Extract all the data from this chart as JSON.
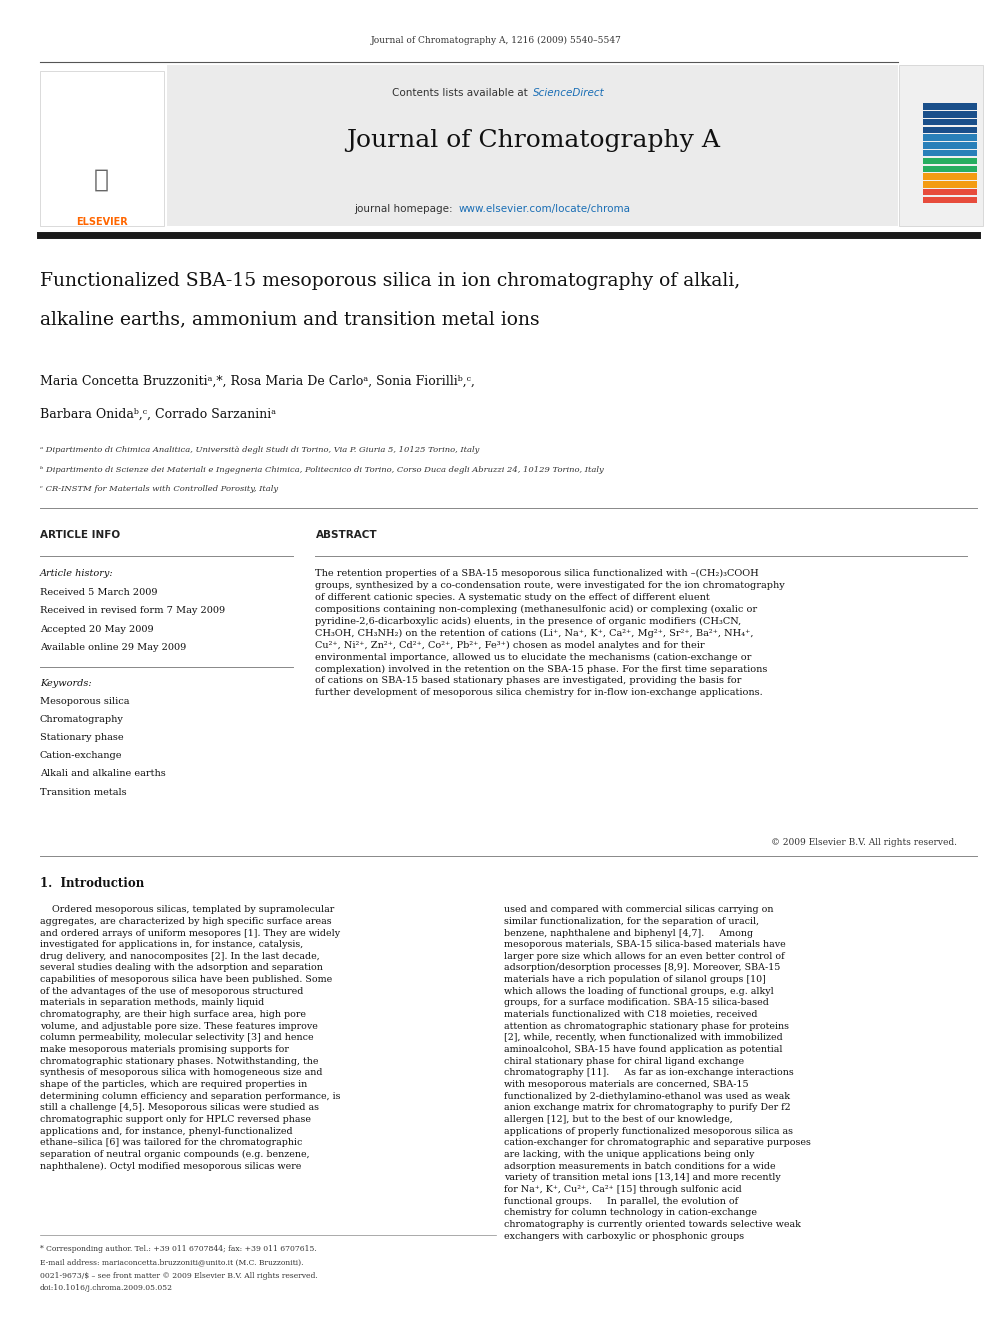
{
  "page_width": 9.92,
  "page_height": 13.23,
  "bg_color": "#ffffff",
  "journal_ref": "Journal of Chromatography A, 1216 (2009) 5540–5547",
  "header_bg": "#e8e8e8",
  "contents_text": "Contents lists available at",
  "sciencedirect_text": "ScienceDirect",
  "sciencedirect_color": "#1a6eb5",
  "journal_title": "Journal of Chromatography A",
  "journal_homepage_label": "journal homepage:",
  "journal_homepage_url": "www.elsevier.com/locate/chroma",
  "journal_homepage_color": "#1a6eb5",
  "article_title_line1": "Functionalized SBA-15 mesoporous silica in ion chromatography of alkali,",
  "article_title_line2": "alkaline earths, ammonium and transition metal ions",
  "authors": "Maria Concetta Bruzzonitiᵃ,*, Rosa Maria De Carloᵃ, Sonia Fiorilliᵇ,ᶜ,",
  "authors_line2": "Barbara Onidaᵇ,ᶜ, Corrado Sarzaniniᵃ",
  "affil_a": "ᵃ Dipartimento di Chimica Analitica, Università degli Studi di Torino, Via P. Giuria 5, 10125 Torino, Italy",
  "affil_b": "ᵇ Dipartimento di Scienze dei Materiali e Ingegneria Chimica, Politecnico di Torino, Corso Duca degli Abruzzi 24, 10129 Torino, Italy",
  "affil_c": "ᶜ CR-INSTM for Materials with Controlled Porosity, Italy",
  "article_info_title": "ARTICLE INFO",
  "abstract_title": "ABSTRACT",
  "article_history_label": "Article history:",
  "received": "Received 5 March 2009",
  "revised": "Received in revised form 7 May 2009",
  "accepted": "Accepted 20 May 2009",
  "available": "Available online 29 May 2009",
  "keywords_label": "Keywords:",
  "keyword1": "Mesoporous silica",
  "keyword2": "Chromatography",
  "keyword3": "Stationary phase",
  "keyword4": "Cation-exchange",
  "keyword5": "Alkali and alkaline earths",
  "keyword6": "Transition metals",
  "abstract_text": "The retention properties of a SBA-15 mesoporous silica functionalized with –(CH₂)₃COOH groups, synthesized by a co-condensation route, were investigated for the ion chromatography of different cationic species. A systematic study on the effect of different eluent compositions containing non-complexing (methanesulfonic acid) or complexing (oxalic or pyridine-2,6-dicarboxylic acids) eluents, in the presence of organic modifiers (CH₃CN, CH₃OH, CH₃NH₂) on the retention of cations (Li⁺, Na⁺, K⁺, Ca²⁺, Mg²⁺, Sr²⁺, Ba²⁺, NH₄⁺, Cu²⁺, Ni²⁺, Zn²⁺, Cd²⁺, Co²⁺, Pb²⁺, Fe³⁺) chosen as model analytes and for their environmental importance, allowed us to elucidate the mechanisms (cation-exchange or complexation) involved in the retention on the SBA-15 phase. For the first time separations of cations on SBA-15 based stationary phases are investigated, providing the basis for further development of mesoporous silica chemistry for in-flow ion-exchange applications.",
  "copyright": "© 2009 Elsevier B.V. All rights reserved.",
  "intro_title": "1.  Introduction",
  "intro_col1_para1": "    Ordered mesoporous silicas, templated by supramolecular aggregates, are characterized by high specific surface areas and ordered arrays of uniform mesopores [1]. They are widely investigated for applications in, for instance, catalysis, drug delivery, and nanocomposites [2]. In the last decade, several studies dealing with the adsorption and separation capabilities of mesoporous silica have been published. Some of the advantages of the use of mesoporous structured materials in separation methods, mainly liquid chromatography, are their high surface area, high pore volume, and adjustable pore size. These features improve column permeability, molecular selectivity [3] and hence make mesoporous materials promising supports for chromatographic stationary phases. Notwithstanding, the synthesis of mesoporous silica with homogeneous size and shape of the particles, which are required properties in determining column efficiency and separation performance, is still a challenge [4,5]. Mesoporous silicas were studied as chromatographic support only for HPLC reversed phase applications and, for instance, phenyl-functionalized ethane–silica [6] was tailored for the chromatographic separation of neutral organic compounds (e.g. benzene, naphthalene). Octyl modified mesoporous silicas were",
  "intro_col2_para1": "used and compared with commercial silicas carrying on similar functionalization, for the separation of uracil, benzene, naphthalene and biphenyl [4,7].\n    Among mesoporous materials, SBA-15 silica-based materials have larger pore size which allows for an even better control of adsorption/desorption processes [8,9]. Moreover, SBA-15 materials have a rich population of silanol groups [10] which allows the loading of functional groups, e.g. alkyl groups, for a surface modification. SBA-15 silica-based materials functionalized with C18 moieties, received attention as chromatographic stationary phase for proteins [2], while, recently, when functionalized with immobilized aminoalcohol, SBA-15 have found application as potential chiral stationary phase for chiral ligand exchange chromatography [11].\n    As far as ion-exchange interactions with mesoporous materials are concerned, SBA-15 functionalized by 2-diethylamino-ethanol was used as weak anion exchange matrix for chromatography to purify Der f2 allergen [12], but to the best of our knowledge, applications of properly functionalized mesoporous silica as cation-exchanger for chromatographic and separative purposes are lacking, with the unique applications being only adsorption measurements in batch conditions for a wide variety of transition metal ions [13,14] and more recently for Na⁺, K⁺, Cu²⁺, Ca²⁺ [15] through sulfonic acid functional groups.\n    In parallel, the evolution of chemistry for column technology in cation-exchange chromatography is currently oriented towards selective weak exchangers with carboxylic or phosphonic groups",
  "footer_line1": "* Corresponding author. Tel.: +39 011 6707844; fax: +39 011 6707615.",
  "footer_line2": "E-mail address: mariaconcetta.bruzzoniti@unito.it (M.C. Bruzzoniti).",
  "footer_line3": "0021-9673/$ – see front matter © 2009 Elsevier B.V. All rights reserved.",
  "footer_line4": "doi:10.1016/j.chroma.2009.05.052",
  "header_bar_color": "#1a1a1a",
  "elsevier_color": "#ff6600",
  "link_color": "#1a6eb5"
}
